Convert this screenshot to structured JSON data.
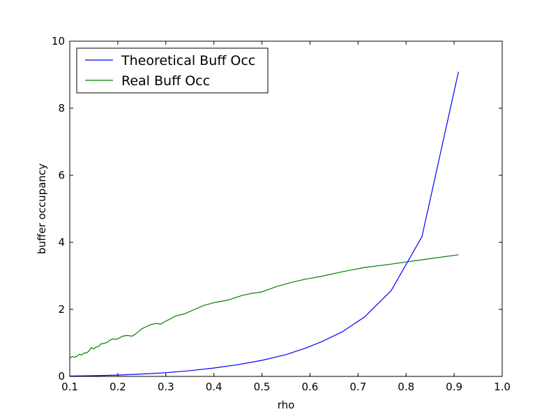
{
  "chart_data": {
    "type": "line",
    "xlabel": "rho",
    "ylabel": "buffer occupancy",
    "xlim": [
      0.1,
      1.0
    ],
    "ylim": [
      0,
      10
    ],
    "xticks": [
      "0.1",
      "0.2",
      "0.3",
      "0.4",
      "0.5",
      "0.6",
      "0.7",
      "0.8",
      "0.9",
      "1.0"
    ],
    "yticks": [
      "0",
      "2",
      "4",
      "6",
      "8",
      "10"
    ],
    "grid": false,
    "legend_position": "top-left",
    "series": [
      {
        "name": "Theoretical Buff Occ",
        "color": "#0000ff",
        "points": [
          [
            0.1,
            0.01
          ],
          [
            0.15,
            0.02
          ],
          [
            0.2,
            0.04
          ],
          [
            0.25,
            0.07
          ],
          [
            0.3,
            0.11
          ],
          [
            0.35,
            0.17
          ],
          [
            0.4,
            0.25
          ],
          [
            0.45,
            0.35
          ],
          [
            0.5,
            0.48
          ],
          [
            0.55,
            0.65
          ],
          [
            0.59,
            0.84
          ],
          [
            0.625,
            1.04
          ],
          [
            0.667,
            1.33
          ],
          [
            0.714,
            1.78
          ],
          [
            0.769,
            2.56
          ],
          [
            0.833,
            4.17
          ],
          [
            0.909,
            9.09
          ]
        ]
      },
      {
        "name": "Real Buff Occ",
        "color": "#008000",
        "points": [
          [
            0.1,
            0.55
          ],
          [
            0.105,
            0.59
          ],
          [
            0.11,
            0.57
          ],
          [
            0.115,
            0.6
          ],
          [
            0.12,
            0.66
          ],
          [
            0.125,
            0.64
          ],
          [
            0.13,
            0.7
          ],
          [
            0.135,
            0.7
          ],
          [
            0.14,
            0.76
          ],
          [
            0.145,
            0.86
          ],
          [
            0.15,
            0.82
          ],
          [
            0.155,
            0.88
          ],
          [
            0.16,
            0.89
          ],
          [
            0.165,
            0.97
          ],
          [
            0.17,
            0.98
          ],
          [
            0.175,
            1.0
          ],
          [
            0.18,
            1.04
          ],
          [
            0.185,
            1.09
          ],
          [
            0.19,
            1.12
          ],
          [
            0.195,
            1.1
          ],
          [
            0.2,
            1.12
          ],
          [
            0.21,
            1.2
          ],
          [
            0.22,
            1.22
          ],
          [
            0.23,
            1.2
          ],
          [
            0.24,
            1.3
          ],
          [
            0.25,
            1.42
          ],
          [
            0.26,
            1.49
          ],
          [
            0.27,
            1.55
          ],
          [
            0.28,
            1.58
          ],
          [
            0.29,
            1.56
          ],
          [
            0.3,
            1.65
          ],
          [
            0.31,
            1.72
          ],
          [
            0.32,
            1.8
          ],
          [
            0.34,
            1.87
          ],
          [
            0.36,
            2.0
          ],
          [
            0.38,
            2.12
          ],
          [
            0.4,
            2.2
          ],
          [
            0.43,
            2.28
          ],
          [
            0.46,
            2.42
          ],
          [
            0.48,
            2.48
          ],
          [
            0.5,
            2.52
          ],
          [
            0.53,
            2.68
          ],
          [
            0.56,
            2.8
          ],
          [
            0.59,
            2.9
          ],
          [
            0.625,
            2.99
          ],
          [
            0.667,
            3.12
          ],
          [
            0.714,
            3.25
          ],
          [
            0.769,
            3.35
          ],
          [
            0.833,
            3.48
          ],
          [
            0.909,
            3.63
          ]
        ]
      }
    ]
  }
}
